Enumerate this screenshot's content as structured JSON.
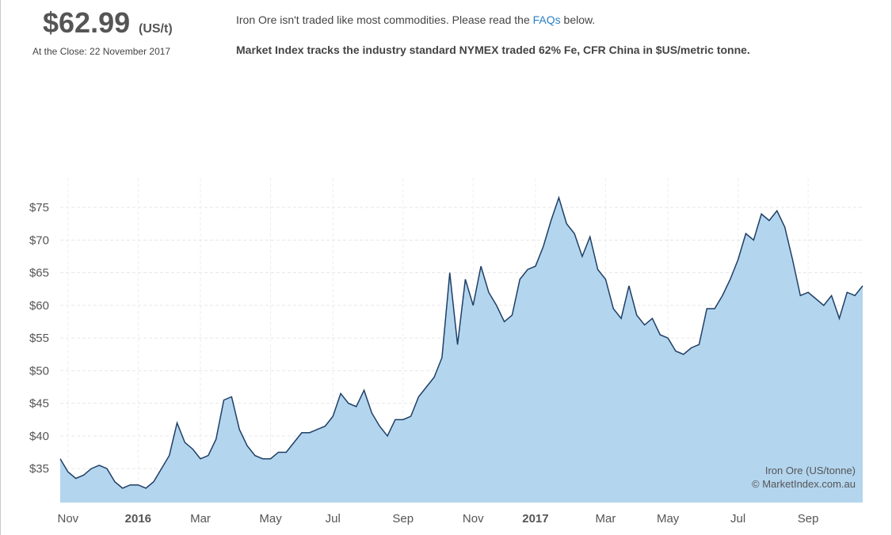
{
  "header": {
    "price": "$62.99",
    "unit": "(US/t)",
    "close_label": "At the Close: 22 November 2017",
    "notice_prefix": "Iron Ore isn't traded like most commodities. Please read the",
    "faq_link": "FAQs",
    "notice_suffix": "below.",
    "description": "Market Index tracks the industry standard NYMEX traded 62% Fe, CFR China in $US/metric tonne."
  },
  "chart_data": {
    "type": "area",
    "annotations": [
      "Iron Ore (US/tonne)",
      "© MarketIndex.com.au"
    ],
    "categories": [
      null,
      "Nov",
      null,
      null,
      null,
      null,
      null,
      null,
      null,
      null,
      "2016",
      null,
      null,
      null,
      null,
      null,
      null,
      null,
      "Mar",
      null,
      null,
      null,
      null,
      null,
      null,
      null,
      null,
      "May",
      null,
      null,
      null,
      null,
      null,
      null,
      null,
      "Jul",
      null,
      null,
      null,
      null,
      null,
      null,
      null,
      null,
      "Sep",
      null,
      null,
      null,
      null,
      null,
      null,
      null,
      null,
      "Nov",
      null,
      null,
      null,
      null,
      null,
      null,
      null,
      "2017",
      null,
      null,
      null,
      null,
      null,
      null,
      null,
      null,
      "Mar",
      null,
      null,
      null,
      null,
      null,
      null,
      null,
      "May",
      null,
      null,
      null,
      null,
      null,
      null,
      null,
      null,
      "Jul",
      null,
      null,
      null,
      null,
      null,
      null,
      null,
      null,
      "Sep",
      null,
      null,
      null,
      null,
      null,
      null,
      null
    ],
    "values": [
      36.5,
      34.5,
      33.5,
      34,
      35,
      35.5,
      35,
      33,
      32,
      32.5,
      32.5,
      32,
      33,
      35,
      37,
      42,
      39,
      38,
      36.5,
      37,
      39.5,
      45.5,
      46,
      41,
      38.5,
      37,
      36.5,
      36.5,
      37.5,
      37.5,
      39,
      40.5,
      40.5,
      41,
      41.5,
      43,
      46.5,
      45,
      44.5,
      47,
      43.5,
      41.5,
      40,
      42.5,
      42.5,
      43,
      46,
      47.5,
      49,
      52,
      65,
      54,
      64,
      60,
      66,
      62,
      60,
      57.5,
      58.5,
      64,
      65.5,
      66,
      69,
      73,
      76.5,
      72.5,
      71,
      67.5,
      70.5,
      65.5,
      64,
      59.5,
      58,
      63,
      58.5,
      57,
      58,
      55.5,
      55,
      53,
      52.5,
      53.5,
      54,
      59.5,
      59.5,
      61.5,
      64,
      67,
      71,
      70,
      74,
      73,
      74.5,
      72,
      67,
      61.5,
      62,
      61,
      60,
      61.5,
      58,
      62,
      61.5,
      63
    ],
    "color": "#1f3f66",
    "fill_color": "#b3d5ee",
    "ylim": [
      29.8,
      79.5
    ],
    "yticks": [
      {
        "value": 35,
        "label": "$35"
      },
      {
        "value": 40,
        "label": "$40"
      },
      {
        "value": 45,
        "label": "$45"
      },
      {
        "value": 50,
        "label": "$50"
      },
      {
        "value": 55,
        "label": "$55"
      },
      {
        "value": 60,
        "label": "$60"
      },
      {
        "value": 65,
        "label": "$65"
      },
      {
        "value": 70,
        "label": "$70"
      },
      {
        "value": 75,
        "label": "$75"
      }
    ],
    "grid": true
  }
}
